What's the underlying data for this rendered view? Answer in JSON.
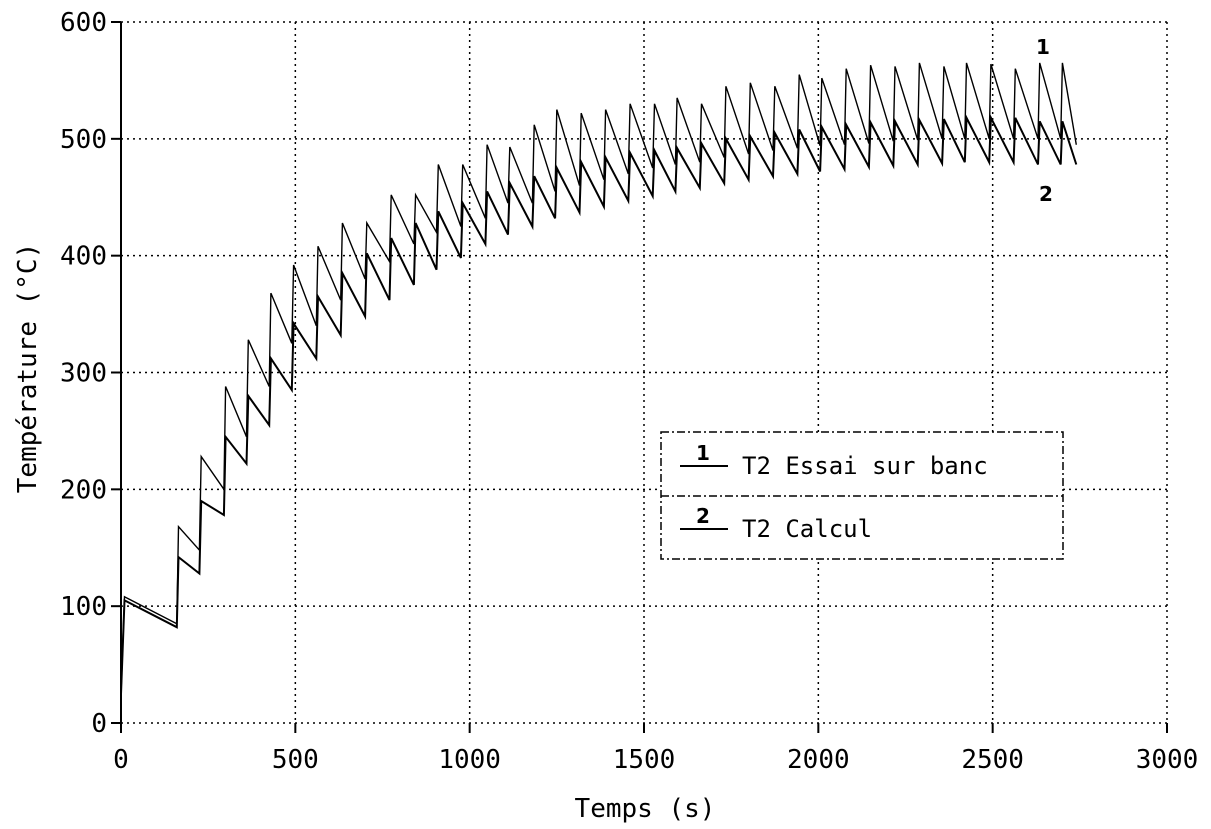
{
  "chart_data": {
    "type": "line",
    "xlabel": "Temps (s)",
    "ylabel": "Température (°C)",
    "xlim": [
      0,
      3000
    ],
    "ylim": [
      0,
      600
    ],
    "xticks": [
      0,
      500,
      1000,
      1500,
      2000,
      2500,
      3000
    ],
    "yticks": [
      0,
      100,
      200,
      300,
      400,
      500,
      600
    ],
    "grid": true,
    "legend_position": "center-right",
    "series": [
      {
        "id": "1",
        "name": "T2 Essai sur banc",
        "color": "#000000",
        "points": [
          [
            0,
            25
          ],
          [
            10,
            108
          ],
          [
            160,
            85
          ],
          [
            165,
            168
          ],
          [
            225,
            148
          ],
          [
            230,
            228
          ],
          [
            295,
            200
          ],
          [
            300,
            288
          ],
          [
            360,
            245
          ],
          [
            365,
            328
          ],
          [
            425,
            288
          ],
          [
            430,
            368
          ],
          [
            490,
            325
          ],
          [
            495,
            392
          ],
          [
            560,
            340
          ],
          [
            565,
            408
          ],
          [
            630,
            362
          ],
          [
            635,
            428
          ],
          [
            700,
            380
          ],
          [
            705,
            428
          ],
          [
            770,
            395
          ],
          [
            775,
            452
          ],
          [
            840,
            410
          ],
          [
            845,
            452
          ],
          [
            905,
            420
          ],
          [
            910,
            478
          ],
          [
            975,
            425
          ],
          [
            980,
            478
          ],
          [
            1045,
            432
          ],
          [
            1050,
            495
          ],
          [
            1110,
            445
          ],
          [
            1115,
            493
          ],
          [
            1180,
            445
          ],
          [
            1185,
            512
          ],
          [
            1245,
            455
          ],
          [
            1250,
            525
          ],
          [
            1315,
            460
          ],
          [
            1320,
            522
          ],
          [
            1385,
            465
          ],
          [
            1390,
            525
          ],
          [
            1455,
            470
          ],
          [
            1460,
            530
          ],
          [
            1525,
            475
          ],
          [
            1530,
            530
          ],
          [
            1590,
            478
          ],
          [
            1595,
            535
          ],
          [
            1660,
            480
          ],
          [
            1665,
            530
          ],
          [
            1730,
            484
          ],
          [
            1735,
            545
          ],
          [
            1800,
            487
          ],
          [
            1805,
            548
          ],
          [
            1870,
            490
          ],
          [
            1875,
            545
          ],
          [
            1940,
            492
          ],
          [
            1945,
            555
          ],
          [
            2005,
            494
          ],
          [
            2010,
            552
          ],
          [
            2075,
            495
          ],
          [
            2080,
            560
          ],
          [
            2145,
            496
          ],
          [
            2150,
            563
          ],
          [
            2215,
            498
          ],
          [
            2220,
            562
          ],
          [
            2285,
            499
          ],
          [
            2290,
            565
          ],
          [
            2355,
            500
          ],
          [
            2360,
            562
          ],
          [
            2420,
            500
          ],
          [
            2425,
            565
          ],
          [
            2490,
            500
          ],
          [
            2495,
            564
          ],
          [
            2560,
            500
          ],
          [
            2565,
            560
          ],
          [
            2630,
            500
          ],
          [
            2635,
            565
          ],
          [
            2695,
            500
          ],
          [
            2700,
            565
          ],
          [
            2740,
            495
          ]
        ]
      },
      {
        "id": "2",
        "name": "T2 Calcul",
        "color": "#000000",
        "points": [
          [
            0,
            25
          ],
          [
            10,
            105
          ],
          [
            160,
            82
          ],
          [
            165,
            142
          ],
          [
            225,
            128
          ],
          [
            230,
            190
          ],
          [
            295,
            178
          ],
          [
            300,
            245
          ],
          [
            360,
            222
          ],
          [
            365,
            280
          ],
          [
            425,
            255
          ],
          [
            430,
            312
          ],
          [
            490,
            285
          ],
          [
            495,
            342
          ],
          [
            560,
            312
          ],
          [
            565,
            365
          ],
          [
            630,
            332
          ],
          [
            635,
            385
          ],
          [
            700,
            348
          ],
          [
            705,
            402
          ],
          [
            770,
            362
          ],
          [
            775,
            415
          ],
          [
            840,
            375
          ],
          [
            845,
            428
          ],
          [
            905,
            388
          ],
          [
            910,
            438
          ],
          [
            975,
            398
          ],
          [
            980,
            445
          ],
          [
            1045,
            410
          ],
          [
            1050,
            455
          ],
          [
            1110,
            418
          ],
          [
            1115,
            462
          ],
          [
            1180,
            425
          ],
          [
            1185,
            468
          ],
          [
            1245,
            432
          ],
          [
            1250,
            475
          ],
          [
            1315,
            437
          ],
          [
            1320,
            480
          ],
          [
            1385,
            442
          ],
          [
            1390,
            484
          ],
          [
            1455,
            447
          ],
          [
            1460,
            488
          ],
          [
            1525,
            451
          ],
          [
            1530,
            490
          ],
          [
            1590,
            455
          ],
          [
            1595,
            492
          ],
          [
            1660,
            458
          ],
          [
            1665,
            496
          ],
          [
            1730,
            462
          ],
          [
            1735,
            500
          ],
          [
            1800,
            465
          ],
          [
            1805,
            502
          ],
          [
            1870,
            468
          ],
          [
            1875,
            505
          ],
          [
            1940,
            470
          ],
          [
            1945,
            508
          ],
          [
            2005,
            472
          ],
          [
            2010,
            510
          ],
          [
            2075,
            474
          ],
          [
            2080,
            512
          ],
          [
            2145,
            476
          ],
          [
            2150,
            514
          ],
          [
            2215,
            477
          ],
          [
            2220,
            515
          ],
          [
            2285,
            478
          ],
          [
            2290,
            516
          ],
          [
            2355,
            479
          ],
          [
            2360,
            517
          ],
          [
            2420,
            480
          ],
          [
            2425,
            518
          ],
          [
            2490,
            480
          ],
          [
            2495,
            518
          ],
          [
            2560,
            480
          ],
          [
            2565,
            518
          ],
          [
            2630,
            478
          ],
          [
            2635,
            515
          ],
          [
            2695,
            478
          ],
          [
            2700,
            515
          ],
          [
            2740,
            478
          ]
        ]
      }
    ],
    "series_labels": [
      "1",
      "2"
    ]
  }
}
